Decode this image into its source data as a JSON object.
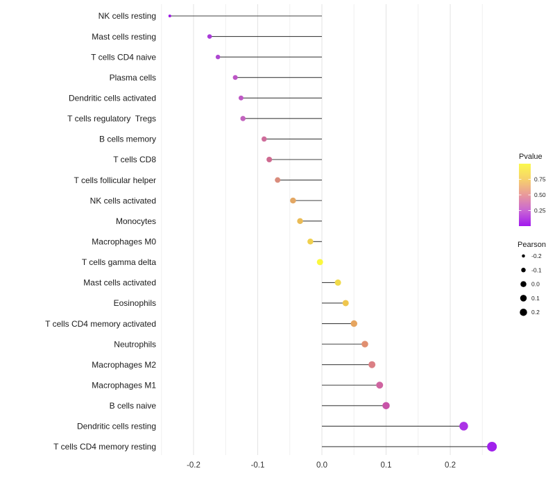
{
  "chart_data": {
    "type": "lollipop",
    "orientation": "horizontal",
    "title": "",
    "xlabel": "",
    "ylabel": "",
    "xlim": [
      -0.27,
      0.275
    ],
    "x_ticks": {
      "values": [
        -0.2,
        -0.1,
        0.0,
        0.1,
        0.2
      ],
      "labels": [
        "-0.2",
        "-0.1",
        "0.0",
        "0.1",
        "0.2"
      ]
    },
    "grid": {
      "from": -0.25,
      "to": 0.25,
      "step": 0.05,
      "major_color": "#e3e3e3",
      "minor_color": "#efefef"
    },
    "points": [
      {
        "label": "NK cells resting",
        "pearson": -0.237,
        "color": "#9b15e3",
        "size": 4
      },
      {
        "label": "Mast cells resting",
        "pearson": -0.175,
        "color": "#a93bd8",
        "size": 6.5
      },
      {
        "label": "T cells CD4 naive",
        "pearson": -0.162,
        "color": "#ae47d1",
        "size": 6.5
      },
      {
        "label": "Plasma cells",
        "pearson": -0.135,
        "color": "#bc55c5",
        "size": 7
      },
      {
        "label": "Dendritic cells activated",
        "pearson": -0.126,
        "color": "#be58c5",
        "size": 7
      },
      {
        "label": "T cells regulatory  Tregs",
        "pearson": -0.123,
        "color": "#c263be",
        "size": 7.5
      },
      {
        "label": "B cells memory",
        "pearson": -0.09,
        "color": "#ce6d9b",
        "size": 7.5
      },
      {
        "label": "T cells CD8",
        "pearson": -0.082,
        "color": "#ce6a90",
        "size": 8
      },
      {
        "label": "T cells follicular helper",
        "pearson": -0.069,
        "color": "#d98c7c",
        "size": 8
      },
      {
        "label": "NK cells activated",
        "pearson": -0.045,
        "color": "#e3a763",
        "size": 8.5
      },
      {
        "label": "Monocytes",
        "pearson": -0.034,
        "color": "#eabb55",
        "size": 8.5
      },
      {
        "label": "Macrophages M0",
        "pearson": -0.018,
        "color": "#f0d04e",
        "size": 8.5
      },
      {
        "label": "T cells gamma delta",
        "pearson": -0.003,
        "color": "#fbf83e",
        "size": 9
      },
      {
        "label": "Mast cells activated",
        "pearson": 0.025,
        "color": "#f0da4a",
        "size": 9
      },
      {
        "label": "Eosinophils",
        "pearson": 0.037,
        "color": "#efc64e",
        "size": 9
      },
      {
        "label": "T cells CD4 memory activated",
        "pearson": 0.05,
        "color": "#e6a55f",
        "size": 9.5
      },
      {
        "label": "Neutrophils",
        "pearson": 0.067,
        "color": "#e08f70",
        "size": 9.5
      },
      {
        "label": "Macrophages M2",
        "pearson": 0.078,
        "color": "#db7f85",
        "size": 10
      },
      {
        "label": "Macrophages M1",
        "pearson": 0.09,
        "color": "#cf64a0",
        "size": 10
      },
      {
        "label": "B cells naive",
        "pearson": 0.1,
        "color": "#c853a8",
        "size": 10.5
      },
      {
        "label": "Dendritic cells resting",
        "pearson": 0.221,
        "color": "#ab32e6",
        "size": 12.5
      },
      {
        "label": "T cells CD4 memory resting",
        "pearson": 0.265,
        "color": "#a021ec",
        "size": 14
      }
    ],
    "legend": {
      "pvalue": {
        "title": "Pvalue",
        "ticks": [
          {
            "label": "0.75",
            "t": 0.75
          },
          {
            "label": "0.50",
            "t": 0.5
          },
          {
            "label": "0.25",
            "t": 0.25
          }
        ],
        "gradient": [
          {
            "t": 0.0,
            "color": "#a118ee"
          },
          {
            "t": 0.25,
            "color": "#c966d4"
          },
          {
            "t": 0.5,
            "color": "#e9999b"
          },
          {
            "t": 0.75,
            "color": "#f6d16c"
          },
          {
            "t": 1.0,
            "color": "#fbf94c"
          }
        ]
      },
      "pearson": {
        "title": "Pearson",
        "dot_color": "#000000",
        "items": [
          {
            "label": "-0.2",
            "size": 4.5
          },
          {
            "label": "-0.1",
            "size": 6.5
          },
          {
            "label": "0.0",
            "size": 8.5
          },
          {
            "label": "0.1",
            "size": 9.5
          },
          {
            "label": "0.2",
            "size": 10.5
          }
        ]
      }
    },
    "colors": {
      "segment": "#404040",
      "axis_text": "#333333",
      "label_text": "#1a1a1a",
      "background": "#ffffff"
    }
  }
}
